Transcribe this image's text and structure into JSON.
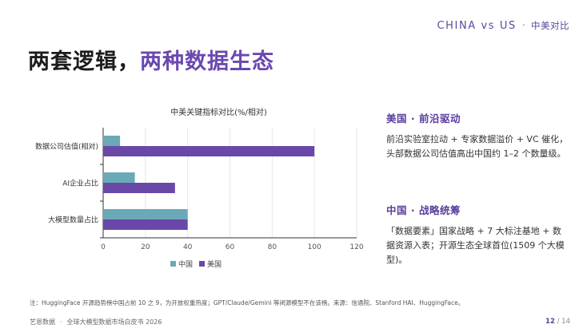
{
  "header": {
    "en_label": "CHINA vs US",
    "separator": "·",
    "cn_label": "中美对比"
  },
  "headline": {
    "part1": "两套逻辑，",
    "part2": "两种数据生态"
  },
  "chart_data": {
    "type": "bar",
    "orientation": "horizontal",
    "title": "中美关键指标对比(%/相对)",
    "categories": [
      "数据公司估值(相对)",
      "AI企业占比",
      "大模型数量占比"
    ],
    "series": [
      {
        "name": "中国",
        "color": "#6aaab8",
        "values": [
          8,
          15,
          40
        ]
      },
      {
        "name": "美国",
        "color": "#6a48a8",
        "values": [
          100,
          34,
          40
        ]
      }
    ],
    "xlim": [
      0,
      120
    ],
    "xticks": [
      "0",
      "20",
      "40",
      "60",
      "80",
      "100",
      "120"
    ],
    "grid": true,
    "legend_position": "bottom"
  },
  "panels": {
    "us": {
      "title": "美国 · 前沿驱动",
      "line1": "前沿实验室拉动 + 专家数据溢价 + VC 催化，",
      "line2": "头部数据公司估值高出中国约 1–2 个数量级。"
    },
    "cn": {
      "title": "中国 · 战略统筹",
      "line1": "「数据要素」国家战略 + 7 大标注基地 + 数",
      "line2": "据资源入表；开源生态全球首位(1509 个大模",
      "line3": "型)。"
    }
  },
  "note": "注：HuggingFace 开源趋势榜中国占前 10 之 9，为开放权重热度；GPT/Claude/Gemini 等闭源模型不在该榜。来源：信通院、Stanford HAI、HuggingFace。",
  "footer": {
    "org": "艺恩数据",
    "separator": "·",
    "doc": "全球大模型数据市场白皮书 2026",
    "page_current": "12",
    "page_sep": "/",
    "page_total": "14"
  }
}
